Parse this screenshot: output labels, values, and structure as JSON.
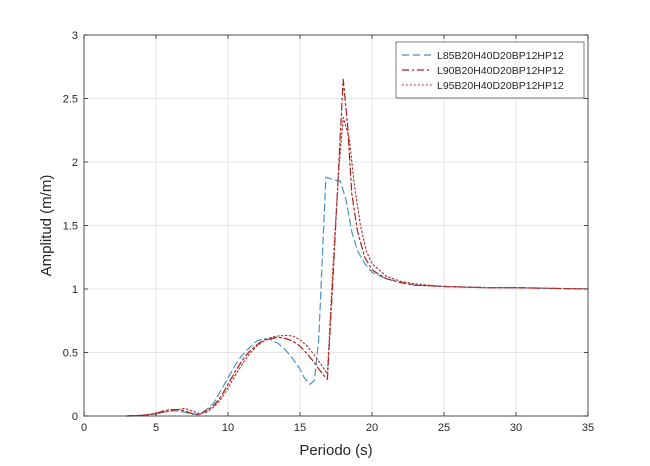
{
  "chart_data": {
    "type": "line",
    "title": "",
    "xlabel": "Periodo (s)",
    "ylabel": "Amplitud (m/m)",
    "xlim": [
      0,
      35
    ],
    "ylim": [
      0,
      3
    ],
    "xticks": [
      0,
      5,
      10,
      15,
      20,
      25,
      30,
      35
    ],
    "yticks": [
      0,
      0.5,
      1,
      1.5,
      2,
      2.5,
      3
    ],
    "xtick_labels": [
      "0",
      "5",
      "10",
      "15",
      "20",
      "25",
      "30",
      "35"
    ],
    "ytick_labels": [
      "0",
      "0.5",
      "1",
      "1.5",
      "2",
      "2.5",
      "3"
    ],
    "grid": true,
    "legend_position": "top-right",
    "series": [
      {
        "name": "L85B20H40D20BP12HP12",
        "color": "#4a90c4",
        "line_style": "dashed",
        "x": [
          3,
          4,
          5,
          5.5,
          6,
          6.5,
          7,
          7.5,
          8,
          8.5,
          9,
          9.5,
          10,
          10.5,
          11,
          11.5,
          12,
          12.5,
          13,
          13.5,
          14,
          14.5,
          15,
          15.3,
          15.7,
          16,
          16.3,
          16.8,
          17.3,
          17.8,
          18.2,
          18.6,
          19,
          19.5,
          20,
          21,
          22,
          23,
          25,
          28,
          30,
          35
        ],
        "y": [
          0,
          0.005,
          0.02,
          0.03,
          0.04,
          0.04,
          0.03,
          0.015,
          0.01,
          0.05,
          0.1,
          0.2,
          0.3,
          0.4,
          0.48,
          0.54,
          0.59,
          0.61,
          0.6,
          0.57,
          0.52,
          0.45,
          0.37,
          0.3,
          0.25,
          0.28,
          0.6,
          1.88,
          1.86,
          1.85,
          1.7,
          1.45,
          1.3,
          1.2,
          1.13,
          1.08,
          1.05,
          1.03,
          1.02,
          1.01,
          1.01,
          1.0
        ]
      },
      {
        "name": "L90B20H40D20BP12HP12",
        "color": "#a8201a",
        "line_style": "dashdot",
        "x": [
          3,
          4,
          5,
          5.5,
          6,
          6.5,
          7,
          7.5,
          8,
          8.5,
          9,
          9.5,
          10,
          10.5,
          11,
          11.5,
          12,
          12.5,
          13,
          13.5,
          14,
          14.5,
          15,
          15.5,
          16,
          16.5,
          16.9,
          17.3,
          17.7,
          18,
          18.3,
          18.6,
          19,
          19.5,
          20,
          21,
          22,
          23,
          25,
          28,
          30,
          35
        ],
        "y": [
          0,
          0.005,
          0.02,
          0.04,
          0.05,
          0.05,
          0.04,
          0.02,
          0.01,
          0.04,
          0.08,
          0.15,
          0.25,
          0.35,
          0.44,
          0.51,
          0.56,
          0.6,
          0.61,
          0.62,
          0.61,
          0.59,
          0.55,
          0.49,
          0.42,
          0.34,
          0.29,
          1.1,
          2.0,
          2.65,
          2.3,
          1.75,
          1.45,
          1.25,
          1.15,
          1.08,
          1.05,
          1.03,
          1.02,
          1.01,
          1.01,
          1.0
        ]
      },
      {
        "name": "L95B20H40D20BP12HP12",
        "color": "#b03a3a",
        "line_style": "dotted",
        "x": [
          3,
          4,
          5,
          5.5,
          6,
          6.5,
          7,
          7.5,
          8,
          8.5,
          9,
          9.5,
          10,
          10.5,
          11,
          11.5,
          12,
          12.5,
          13,
          13.5,
          14,
          14.5,
          15,
          15.5,
          16,
          16.5,
          16.9,
          17.3,
          17.7,
          18,
          18.4,
          18.8,
          19.2,
          19.6,
          20,
          21,
          22,
          23,
          25,
          28,
          30,
          35
        ],
        "y": [
          0,
          0.005,
          0.015,
          0.03,
          0.04,
          0.05,
          0.06,
          0.04,
          0.02,
          0.03,
          0.07,
          0.13,
          0.22,
          0.32,
          0.41,
          0.49,
          0.55,
          0.59,
          0.62,
          0.63,
          0.635,
          0.63,
          0.6,
          0.55,
          0.48,
          0.4,
          0.33,
          1.2,
          1.95,
          2.35,
          2.2,
          1.8,
          1.5,
          1.3,
          1.2,
          1.1,
          1.06,
          1.04,
          1.02,
          1.01,
          1.01,
          1.0
        ]
      }
    ]
  }
}
